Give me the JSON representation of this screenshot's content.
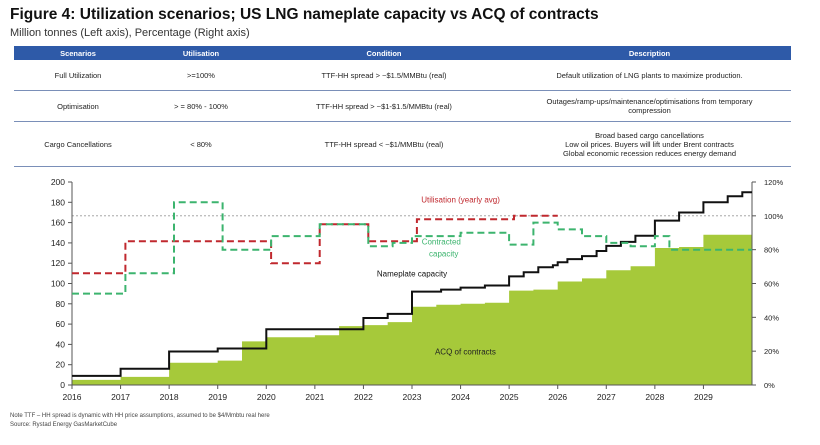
{
  "header": {
    "title": "Figure 4: Utilization scenarios; US LNG nameplate capacity vs ACQ of contracts",
    "subtitle": "Million tonnes (Left axis), Percentage (Right axis)"
  },
  "table": {
    "columns": [
      "Scenarios",
      "Utilisation",
      "Condition",
      "Description"
    ],
    "rows": [
      {
        "scenario": "Full Utilization",
        "utilisation": ">=100%",
        "condition": "TTF-HH spread > ~$1.5/MMBtu (real)",
        "description": [
          "Default utilization of LNG plants to maximize production."
        ]
      },
      {
        "scenario": "Optimisation",
        "utilisation": "> = 80% - 100%",
        "condition": "TTF-HH spread > ~$1-$1.5/MMBtu (real)",
        "description": [
          "Outages/ramp-ups/maintenance/optimisations from temporary",
          "compression"
        ]
      },
      {
        "scenario": "Cargo Cancellations",
        "utilisation": "< 80%",
        "condition": "TTF-HH spread < ~$1/MMBtu (real)",
        "description": [
          "Broad based cargo cancellations",
          "Low oil prices. Buyers will lift under Brent contracts",
          "Global economic recession reduces energy demand"
        ]
      }
    ]
  },
  "colors": {
    "header_bg": "#2e5aa8",
    "acq_fill": "#a6c93a",
    "nameplate": "#111111",
    "utilisation": "#c0282e",
    "contracted": "#3cb46e",
    "reference": "#999999"
  },
  "chart_data": {
    "type": "area",
    "xlim": [
      2016,
      2030
    ],
    "xticks": [
      "2016",
      "2017",
      "2018",
      "2019",
      "2020",
      "2021",
      "2022",
      "2023",
      "2024",
      "2025",
      "2026",
      "2027",
      "2028",
      "2029"
    ],
    "ylim": [
      0,
      200
    ],
    "yticks": [
      "0",
      "20",
      "40",
      "60",
      "80",
      "100",
      "120",
      "140",
      "160",
      "180",
      "200"
    ],
    "y2lim": [
      0,
      120
    ],
    "y2ticks": [
      "0%",
      "20%",
      "40%",
      "60%",
      "80%",
      "100%",
      "120%"
    ],
    "reference_line": {
      "axis": "right",
      "value": 100
    },
    "annotations": {
      "nameplate": "Nameplate capacity",
      "utilisation": "Utilisation (yearly avg)",
      "contracted": [
        "Contracted",
        "capacity"
      ],
      "acq": "ACQ of contracts"
    },
    "series": [
      {
        "name": "Nameplate capacity",
        "axis": "left",
        "style": "step-line",
        "points": [
          [
            2016,
            9
          ],
          [
            2017,
            16
          ],
          [
            2018,
            33
          ],
          [
            2019,
            36
          ],
          [
            2020,
            55
          ],
          [
            2021,
            55
          ],
          [
            2022,
            66
          ],
          [
            2022.5,
            70
          ],
          [
            2023,
            92
          ],
          [
            2023.6,
            94
          ],
          [
            2024,
            96
          ],
          [
            2024.5,
            98
          ],
          [
            2025,
            107
          ],
          [
            2025.3,
            111
          ],
          [
            2025.6,
            116
          ],
          [
            2025.9,
            118
          ],
          [
            2026,
            121
          ],
          [
            2026.2,
            124
          ],
          [
            2026.5,
            127
          ],
          [
            2026.8,
            132
          ],
          [
            2027,
            137
          ],
          [
            2027.3,
            141
          ],
          [
            2027.6,
            147
          ],
          [
            2028,
            162
          ],
          [
            2028.5,
            170
          ],
          [
            2029,
            180
          ],
          [
            2029.5,
            186
          ],
          [
            2029.8,
            190
          ],
          [
            2030,
            190
          ]
        ]
      },
      {
        "name": "ACQ of contracts",
        "axis": "left",
        "style": "step-area",
        "points": [
          [
            2016,
            5
          ],
          [
            2017,
            8
          ],
          [
            2018,
            22
          ],
          [
            2019,
            24
          ],
          [
            2019.5,
            43
          ],
          [
            2020,
            47
          ],
          [
            2021,
            49
          ],
          [
            2021.5,
            58
          ],
          [
            2022,
            59
          ],
          [
            2022.5,
            62
          ],
          [
            2023,
            77
          ],
          [
            2023.5,
            79
          ],
          [
            2024,
            80
          ],
          [
            2024.5,
            81
          ],
          [
            2025,
            93
          ],
          [
            2025.5,
            94
          ],
          [
            2026,
            102
          ],
          [
            2026.5,
            105
          ],
          [
            2027,
            113
          ],
          [
            2027.5,
            117
          ],
          [
            2028,
            135
          ],
          [
            2028.5,
            136
          ],
          [
            2029,
            148
          ],
          [
            2030,
            148
          ]
        ]
      },
      {
        "name": "Utilisation (yearly avg)",
        "axis": "right",
        "style": "dashed-step",
        "points": [
          [
            2016,
            66
          ],
          [
            2017,
            66
          ],
          [
            2017.1,
            85
          ],
          [
            2020,
            85
          ],
          [
            2020.1,
            72
          ],
          [
            2021,
            72
          ],
          [
            2021.1,
            95
          ],
          [
            2022,
            95
          ],
          [
            2022.1,
            85
          ],
          [
            2023,
            85
          ],
          [
            2023.1,
            98
          ],
          [
            2025,
            98
          ],
          [
            2025.1,
            100
          ],
          [
            2026,
            100
          ]
        ]
      },
      {
        "name": "Contracted capacity",
        "axis": "right",
        "style": "dashed-step",
        "points": [
          [
            2016,
            54
          ],
          [
            2017,
            54
          ],
          [
            2017.1,
            66
          ],
          [
            2018,
            66
          ],
          [
            2018.1,
            108
          ],
          [
            2019,
            108
          ],
          [
            2019.1,
            80
          ],
          [
            2020,
            80
          ],
          [
            2020.1,
            88
          ],
          [
            2021,
            88
          ],
          [
            2021.1,
            95
          ],
          [
            2022,
            95
          ],
          [
            2022.1,
            82
          ],
          [
            2022.6,
            84
          ],
          [
            2023,
            88
          ],
          [
            2024,
            90
          ],
          [
            2025,
            83
          ],
          [
            2025.5,
            96
          ],
          [
            2026,
            92
          ],
          [
            2026.5,
            88
          ],
          [
            2027,
            84
          ],
          [
            2027.5,
            82
          ],
          [
            2028,
            88
          ],
          [
            2028.3,
            80
          ],
          [
            2030,
            80
          ]
        ]
      }
    ]
  },
  "notes": {
    "line1": "Note TTF – HH spread is dynamic with HH price assumptions, assumed to be $4/Mmbtu real here",
    "line2": "Source: Rystad Energy GasMarketCube"
  }
}
